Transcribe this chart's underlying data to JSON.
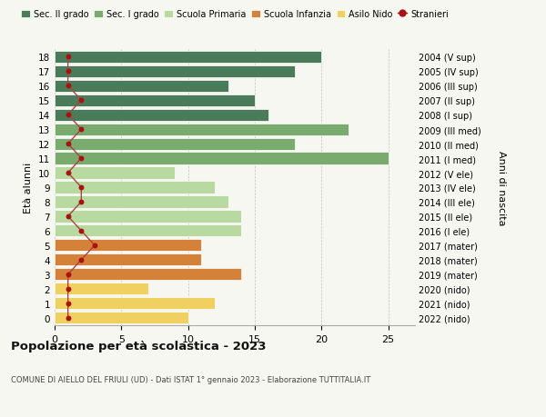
{
  "ages": [
    18,
    17,
    16,
    15,
    14,
    13,
    12,
    11,
    10,
    9,
    8,
    7,
    6,
    5,
    4,
    3,
    2,
    1,
    0
  ],
  "values": [
    20,
    18,
    13,
    15,
    16,
    22,
    18,
    25,
    9,
    12,
    13,
    14,
    14,
    11,
    11,
    14,
    7,
    12,
    10
  ],
  "stranieri": [
    1,
    1,
    1,
    2,
    1,
    2,
    1,
    2,
    1,
    2,
    2,
    1,
    2,
    3,
    2,
    1,
    1,
    1,
    1
  ],
  "right_labels": [
    "2004 (V sup)",
    "2005 (IV sup)",
    "2006 (III sup)",
    "2007 (II sup)",
    "2008 (I sup)",
    "2009 (III med)",
    "2010 (II med)",
    "2011 (I med)",
    "2012 (V ele)",
    "2013 (IV ele)",
    "2014 (III ele)",
    "2015 (II ele)",
    "2016 (I ele)",
    "2017 (mater)",
    "2018 (mater)",
    "2019 (mater)",
    "2020 (nido)",
    "2021 (nido)",
    "2022 (nido)"
  ],
  "bar_colors": [
    "#4a7c59",
    "#4a7c59",
    "#4a7c59",
    "#4a7c59",
    "#4a7c59",
    "#7aab6e",
    "#7aab6e",
    "#7aab6e",
    "#b8d9a0",
    "#b8d9a0",
    "#b8d9a0",
    "#b8d9a0",
    "#b8d9a0",
    "#d4813a",
    "#d4813a",
    "#d4813a",
    "#f0d060",
    "#f0d060",
    "#f0d060"
  ],
  "stranieri_color": "#aa1111",
  "stranieri_line_color": "#aa4444",
  "title": "Popolazione per età scolastica - 2023",
  "subtitle": "COMUNE DI AIELLO DEL FRIULI (UD) - Dati ISTAT 1° gennaio 2023 - Elaborazione TUTTITALIA.IT",
  "ylabel_left": "Età alunni",
  "ylabel_right": "Anni di nascita",
  "xlim": [
    0,
    27
  ],
  "xticks": [
    0,
    5,
    10,
    15,
    20,
    25
  ],
  "legend_labels": [
    "Sec. II grado",
    "Sec. I grado",
    "Scuola Primaria",
    "Scuola Infanzia",
    "Asilo Nido",
    "Stranieri"
  ],
  "legend_colors": [
    "#4a7c59",
    "#7aab6e",
    "#b8d9a0",
    "#d4813a",
    "#f0d060",
    "#aa1111"
  ],
  "bg_color": "#f7f7f2"
}
